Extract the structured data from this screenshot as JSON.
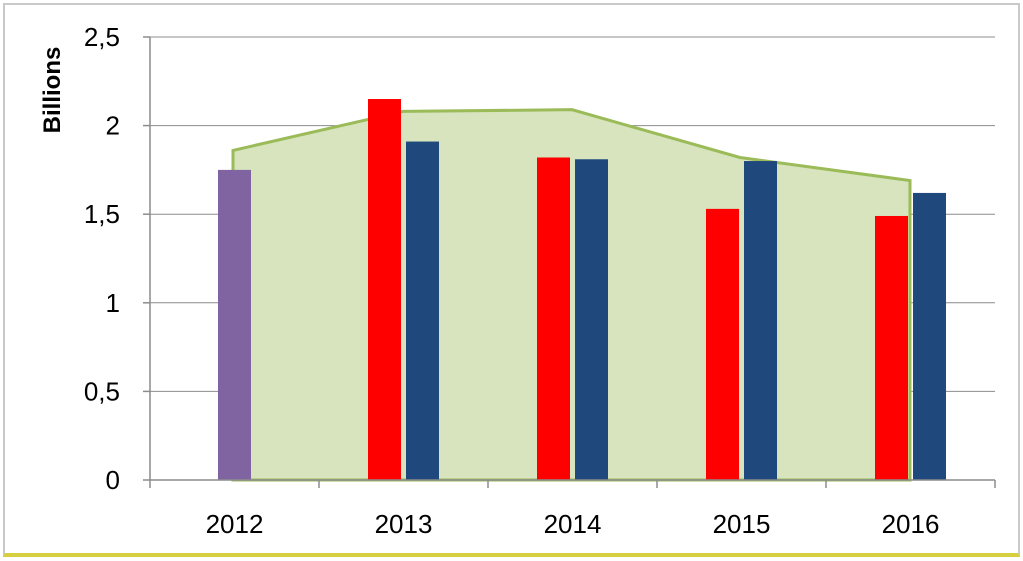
{
  "chart_data": {
    "type": "bar",
    "title": "",
    "xlabel": "",
    "ylabel": "Billions",
    "ylim": [
      0,
      2.5
    ],
    "yticks": [
      "0",
      "0,5",
      "1",
      "1,5",
      "2",
      "2,5"
    ],
    "ytick_values": [
      0,
      0.5,
      1,
      1.5,
      2,
      2.5
    ],
    "categories": [
      "2012",
      "2013",
      "2014",
      "2015",
      "2016"
    ],
    "grid": true,
    "legend": "none",
    "series": [
      {
        "type": "bar",
        "color": "#8064a2",
        "values": [
          1.75,
          null,
          null,
          null,
          null
        ]
      },
      {
        "type": "bar",
        "color": "#ff0000",
        "values": [
          null,
          2.15,
          1.82,
          1.53,
          1.49
        ]
      },
      {
        "type": "bar",
        "color": "#1f497d",
        "values": [
          null,
          1.91,
          1.81,
          1.8,
          1.62
        ]
      },
      {
        "type": "area",
        "color": "#9bbb59",
        "fill": "#d7e4bd",
        "values": [
          1.86,
          2.08,
          2.09,
          1.82,
          1.69
        ]
      }
    ]
  }
}
